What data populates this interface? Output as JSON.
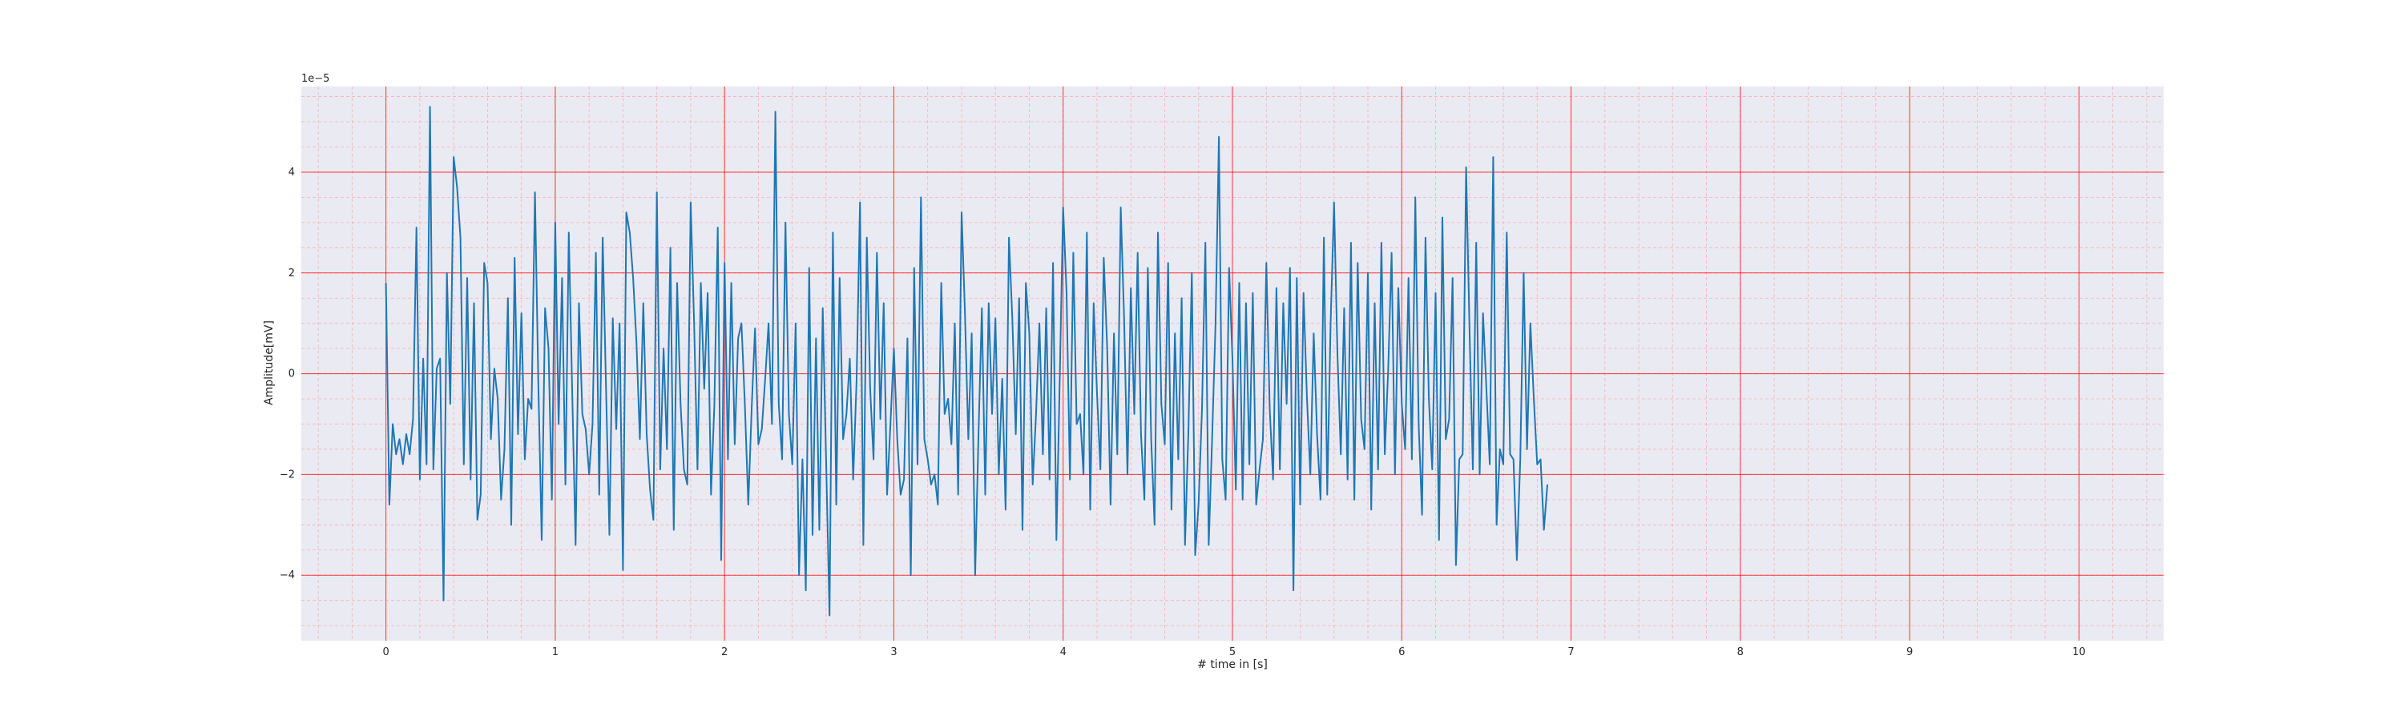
{
  "chart_data": {
    "type": "line",
    "title": "",
    "xlabel": "# time in [s]",
    "ylabel": "Amplitude[mV]",
    "offset_text": "1e−5",
    "scale_multiplier": 1e-05,
    "xlim": [
      -0.5,
      10.5
    ],
    "ylim": [
      -5.3,
      5.7
    ],
    "x_major_ticks": [
      0,
      1,
      2,
      3,
      4,
      5,
      6,
      7,
      8,
      9,
      10
    ],
    "x_tick_labels": [
      "0",
      "1",
      "2",
      "3",
      "4",
      "5",
      "6",
      "7",
      "8",
      "9",
      "10"
    ],
    "y_major_ticks": [
      -4,
      -2,
      0,
      2,
      4
    ],
    "y_tick_labels": [
      "−4",
      "−2",
      "0",
      "2",
      "4"
    ],
    "grid": {
      "major": true,
      "minor": true,
      "major_color": "#ff0000",
      "minor_color": "#ff9a9a"
    },
    "background": "#eaeaf2",
    "series": [
      {
        "color": "#1f77b4",
        "sample_interval": 0.02,
        "x_start": 0,
        "values": [
          1.8,
          -2.6,
          -1.0,
          -1.6,
          -1.3,
          -1.8,
          -1.2,
          -1.6,
          -0.9,
          2.9,
          -2.1,
          0.3,
          -1.8,
          5.3,
          -1.9,
          0.1,
          0.3,
          -4.5,
          2.0,
          -0.6,
          4.3,
          3.7,
          2.7,
          -1.8,
          1.9,
          -2.1,
          1.4,
          -2.9,
          -2.4,
          2.2,
          1.8,
          -1.3,
          0.1,
          -0.5,
          -2.5,
          -1.5,
          1.5,
          -3.0,
          2.3,
          -1.2,
          1.2,
          -1.7,
          -0.5,
          -0.7,
          3.6,
          -0.2,
          -3.3,
          1.3,
          0.5,
          -2.5,
          3.0,
          -1.0,
          1.9,
          -2.2,
          2.8,
          -0.3,
          -3.4,
          1.4,
          -0.8,
          -1.1,
          -2.0,
          -1.0,
          2.4,
          -2.4,
          2.7,
          -0.3,
          -3.2,
          1.1,
          -1.1,
          1.0,
          -3.9,
          3.2,
          2.8,
          1.9,
          0.6,
          -1.3,
          1.4,
          -1.2,
          -2.3,
          -2.9,
          3.6,
          -1.9,
          0.5,
          -1.5,
          2.5,
          -3.1,
          1.8,
          -0.6,
          -1.9,
          -2.2,
          3.4,
          1.0,
          -1.9,
          1.8,
          -0.3,
          1.6,
          -2.4,
          -0.6,
          2.9,
          -3.7,
          2.2,
          -1.7,
          1.8,
          -1.4,
          0.7,
          1.0,
          -0.6,
          -2.6,
          -0.7,
          0.9,
          -1.4,
          -1.1,
          -0.1,
          1.0,
          -1.0,
          5.2,
          -0.6,
          -1.7,
          3.0,
          -0.8,
          -1.8,
          1.0,
          -4.0,
          -1.7,
          -4.3,
          2.1,
          -3.2,
          0.7,
          -3.1,
          1.3,
          -1.7,
          -4.8,
          2.8,
          -2.6,
          1.9,
          -1.3,
          -0.8,
          0.3,
          -2.1,
          -0.1,
          3.4,
          -3.4,
          2.7,
          -0.3,
          -1.7,
          2.4,
          -0.9,
          1.4,
          -2.4,
          -1.0,
          0.5,
          -1.3,
          -2.4,
          -2.1,
          0.7,
          -4.0,
          2.1,
          -1.8,
          3.5,
          -1.3,
          -1.7,
          -2.2,
          -2.0,
          -2.6,
          1.8,
          -0.8,
          -0.5,
          -1.4,
          1.0,
          -2.4,
          3.2,
          1.2,
          -1.3,
          0.8,
          -4.0,
          -1.2,
          1.3,
          -2.4,
          1.4,
          -0.8,
          1.1,
          -2.0,
          -0.1,
          -2.7,
          2.7,
          1.1,
          -1.2,
          1.5,
          -3.1,
          1.8,
          0.8,
          -2.2,
          -0.8,
          1.0,
          -1.6,
          1.3,
          -2.1,
          2.2,
          -3.3,
          -0.1,
          3.3,
          1.6,
          -2.1,
          2.4,
          -1.0,
          -0.8,
          -2.0,
          2.8,
          -2.7,
          1.4,
          -0.4,
          -1.9,
          2.3,
          0.5,
          -2.6,
          0.8,
          -1.6,
          3.3,
          1.1,
          -2.0,
          1.7,
          -0.8,
          2.4,
          -1.2,
          -2.5,
          2.1,
          -1.3,
          -3.0,
          2.8,
          -0.6,
          -1.4,
          2.2,
          -2.7,
          0.8,
          -1.7,
          1.5,
          -3.4,
          -1.1,
          2.0,
          -3.6,
          -2.6,
          -0.7,
          2.6,
          -3.4,
          -1.3,
          1.0,
          4.7,
          -1.7,
          -2.5,
          2.1,
          0.3,
          -2.3,
          1.8,
          -2.5,
          1.4,
          -1.8,
          1.6,
          -2.6,
          -1.9,
          -1.3,
          2.2,
          -0.7,
          -2.1,
          1.7,
          -1.9,
          1.4,
          -0.6,
          2.1,
          -4.3,
          1.9,
          -2.6,
          1.6,
          -0.5,
          -2.0,
          0.8,
          -1.2,
          -2.5,
          2.7,
          -2.4,
          1.0,
          3.4,
          0.4,
          -1.6,
          1.3,
          -2.1,
          2.6,
          -2.5,
          2.2,
          -0.9,
          -1.5,
          2.0,
          -2.7,
          1.4,
          -1.9,
          2.6,
          -1.6,
          0.1,
          2.4,
          -2.0,
          1.7,
          -0.6,
          -1.5,
          1.9,
          -1.7,
          3.5,
          -1.0,
          -2.8,
          2.7,
          -0.5,
          -1.9,
          1.6,
          -3.3,
          3.1,
          -1.3,
          -0.9,
          1.9,
          -3.8,
          -1.7,
          -1.6,
          4.1,
          0.9,
          -1.9,
          2.6,
          -2.0,
          1.2,
          -0.3,
          -1.8,
          4.3,
          -3.0,
          -1.5,
          -1.8,
          2.8,
          -1.6,
          -1.7,
          -3.7,
          -1.7,
          2.0,
          -1.5,
          1.0,
          -0.5,
          -1.8,
          -1.7,
          -3.1,
          -2.2
        ]
      }
    ]
  }
}
